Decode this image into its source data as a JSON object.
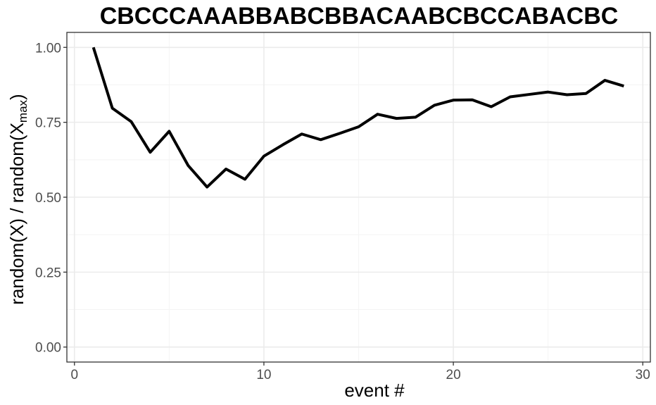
{
  "chart_data": {
    "type": "line",
    "title": "CBCCCAAABBABCBBACAABCBCCABACBC",
    "xlabel": "event #",
    "ylabel": {
      "main": "random(X) / random(X",
      "subscript": "max",
      "close": ")"
    },
    "xlim": [
      -0.4,
      30.4
    ],
    "ylim": [
      -0.05,
      1.05
    ],
    "xticks": [
      0,
      10,
      20,
      30
    ],
    "xtick_labels": [
      "0",
      "10",
      "20",
      "30"
    ],
    "yticks": [
      0,
      0.25,
      0.5,
      0.75,
      1.0
    ],
    "ytick_labels": [
      "0.00",
      "0.25",
      "0.50",
      "0.75",
      "1.00"
    ],
    "grid": true,
    "legend": "none",
    "series_color": "#000000",
    "series": [
      {
        "x": [
          1,
          2,
          3,
          4,
          5,
          6,
          7,
          8,
          9,
          10,
          11,
          12,
          13,
          14,
          15,
          16,
          17,
          18,
          19,
          20,
          21,
          22,
          23,
          24,
          25,
          26,
          27,
          28,
          29
        ],
        "values": [
          1.0,
          0.797,
          0.752,
          0.65,
          0.72,
          0.606,
          0.534,
          0.594,
          0.56,
          0.637,
          0.675,
          0.711,
          0.692,
          0.713,
          0.735,
          0.777,
          0.763,
          0.767,
          0.807,
          0.824,
          0.825,
          0.802,
          0.835,
          0.843,
          0.851,
          0.842,
          0.846,
          0.89,
          0.871
        ]
      }
    ]
  }
}
